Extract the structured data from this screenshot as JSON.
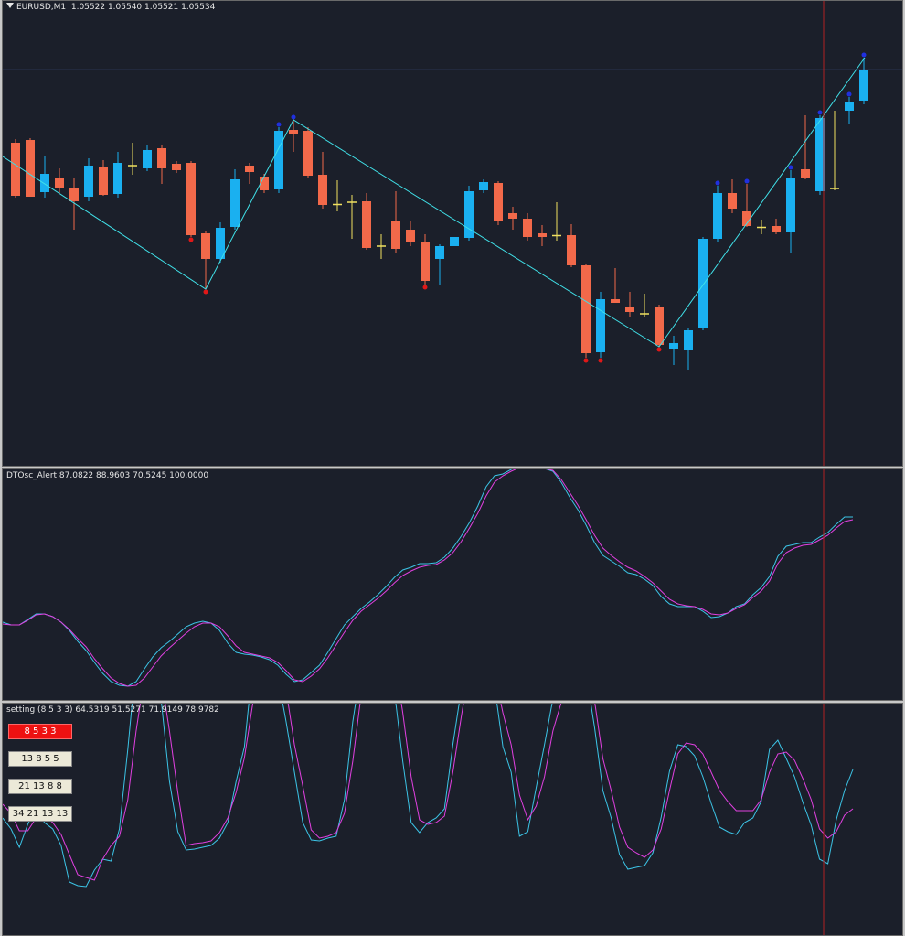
{
  "main": {
    "symbol": "EURUSD,M1",
    "ohlc": "1.05522 1.05540 1.05521 1.05534"
  },
  "osc1": {
    "title": "DTOsc_Alert 87.0822 88.9603 70.5245 100.0000"
  },
  "osc2": {
    "title": "setting (8 5 3 3) 64.5319 51.5271 71.9149 78.9782",
    "buttons": [
      "8  5  3  3",
      "13  8  5  5",
      "21 13 8 8",
      "34 21 13 13"
    ],
    "active_button": 0
  },
  "colors": {
    "background": "#1b1f2a",
    "bull": "#1ab0f0",
    "bear": "#f2694a",
    "doji": "#f0e060",
    "zigzag": "#40e0e8",
    "fast_line": "#3cc4e6",
    "slow_line": "#e040e0",
    "cursor": "#b22222",
    "fractal_low": "#e01818",
    "fractal_high": "#2030e0"
  },
  "chart_data": [
    {
      "type": "candlestick",
      "name": "EURUSD,M1",
      "candles": [
        [
          155,
          151,
          215,
          213
        ],
        [
          152,
          150,
          214,
          214
        ],
        [
          209,
          170,
          215,
          189
        ],
        [
          193,
          183,
          210,
          205
        ],
        [
          204,
          194,
          250,
          219
        ],
        [
          214,
          172,
          219,
          180
        ],
        [
          182,
          174,
          213,
          212
        ],
        [
          211,
          165,
          215,
          177
        ],
        [
          180,
          155,
          190,
          180
        ],
        [
          183,
          157,
          186,
          163
        ],
        [
          161,
          158,
          200,
          183
        ],
        [
          178,
          175,
          188,
          185
        ],
        [
          177,
          175,
          258,
          256
        ],
        [
          254,
          252,
          315,
          282
        ],
        [
          282,
          242,
          286,
          248
        ],
        [
          247,
          184,
          250,
          195
        ],
        [
          180,
          177,
          200,
          187
        ],
        [
          192,
          189,
          210,
          207
        ],
        [
          206,
          138,
          210,
          142
        ],
        [
          141,
          130,
          165,
          145
        ],
        [
          142,
          138,
          193,
          191
        ],
        [
          190,
          165,
          227,
          223
        ],
        [
          221,
          196,
          230,
          224
        ],
        [
          219,
          212,
          260,
          221
        ],
        [
          219,
          210,
          272,
          270
        ],
        [
          268,
          255,
          282,
          268
        ],
        [
          240,
          208,
          275,
          271
        ],
        [
          250,
          240,
          268,
          264
        ],
        [
          264,
          255,
          310,
          306
        ],
        [
          282,
          266,
          311,
          268
        ],
        [
          268,
          258,
          265,
          258
        ],
        [
          259,
          202,
          262,
          208
        ],
        [
          207,
          195,
          210,
          198
        ],
        [
          199,
          197,
          245,
          241
        ],
        [
          232,
          225,
          250,
          238
        ],
        [
          238,
          232,
          262,
          258
        ],
        [
          254,
          245,
          268,
          258
        ],
        [
          255,
          220,
          262,
          258
        ],
        [
          256,
          244,
          291,
          289
        ],
        [
          289,
          287,
          390,
          385
        ],
        [
          384,
          318,
          390,
          326
        ],
        [
          326,
          292,
          330,
          330
        ],
        [
          335,
          318,
          345,
          340
        ],
        [
          341,
          320,
          345,
          343
        ],
        [
          335,
          332,
          378,
          376
        ],
        [
          380,
          366,
          398,
          374
        ],
        [
          382,
          357,
          403,
          360
        ],
        [
          357,
          258,
          360,
          260
        ],
        [
          260,
          202,
          263,
          210
        ],
        [
          210,
          195,
          232,
          227
        ],
        [
          230,
          200,
          247,
          246
        ],
        [
          246,
          239,
          255,
          249
        ],
        [
          246,
          238,
          255,
          253
        ],
        [
          253,
          185,
          276,
          193
        ],
        [
          184,
          125,
          195,
          194
        ],
        [
          208,
          125,
          212,
          128
        ],
        [
          205,
          120,
          207,
          205
        ],
        [
          120,
          105,
          135,
          111
        ],
        [
          109,
          62,
          113,
          76
        ]
      ]
    },
    {
      "type": "line",
      "name": "DTOsc_Alert",
      "series": [
        {
          "values": [
            87,
            84,
            84,
            90,
            96,
            96,
            93,
            87,
            78,
            66,
            56,
            43,
            31,
            22,
            18,
            17,
            22,
            36,
            49,
            59,
            66,
            74,
            82,
            86,
            88,
            86,
            78,
            64,
            54,
            52,
            51,
            49,
            46,
            40,
            30,
            22,
            24,
            32,
            40,
            54,
            69,
            84,
            93,
            102,
            109,
            117,
            126,
            136,
            144,
            147,
            151,
            151,
            152,
            158,
            168,
            181,
            196,
            214,
            235,
            247,
            249,
            254,
            259,
            256,
            257,
            255,
            252,
            240,
            224,
            210,
            193,
            174,
            160,
            154,
            148,
            141,
            139,
            134,
            127,
            115,
            107,
            104,
            104,
            104,
            99,
            92,
            93,
            97,
            104,
            107,
            117,
            125,
            137,
            159,
            170,
            172,
            174,
            174,
            180,
            185,
            194,
            202,
            202
          ]
        },
        {
          "values": [
            85,
            84,
            84,
            89,
            95,
            96,
            93,
            87,
            79,
            69,
            60,
            47,
            36,
            26,
            20,
            17,
            18,
            26,
            38,
            50,
            59,
            67,
            75,
            82,
            86,
            86,
            82,
            72,
            61,
            54,
            52,
            50,
            48,
            43,
            34,
            24,
            22,
            28,
            36,
            48,
            62,
            76,
            89,
            99,
            106,
            113,
            121,
            130,
            138,
            143,
            147,
            149,
            150,
            155,
            163,
            175,
            190,
            206,
            225,
            240,
            247,
            252,
            256,
            256,
            256,
            255,
            253,
            243,
            229,
            215,
            199,
            182,
            168,
            160,
            153,
            147,
            143,
            137,
            130,
            121,
            112,
            107,
            105,
            104,
            101,
            96,
            95,
            97,
            102,
            106,
            114,
            121,
            132,
            151,
            163,
            168,
            171,
            172,
            177,
            182,
            190,
            197,
            199
          ]
        }
      ]
    },
    {
      "type": "line",
      "name": "setting (8 5 3 3)",
      "series": [
        {
          "values": [
            130,
            118,
            98,
            123,
            142,
            125,
            118,
            100,
            60,
            56,
            55,
            73,
            85,
            83,
            118,
            205,
            302,
            325,
            318,
            260,
            170,
            115,
            95,
            96,
            98,
            100,
            108,
            125,
            170,
            208,
            298,
            318,
            318,
            285,
            235,
            180,
            125,
            106,
            105,
            108,
            110,
            150,
            235,
            296,
            325,
            326,
            300,
            268,
            192,
            125,
            114,
            125,
            130,
            140,
            210,
            270,
            320,
            322,
            295,
            275,
            208,
            180,
            110,
            115,
            163,
            210,
            260,
            272,
            315,
            322,
            288,
            229,
            160,
            130,
            90,
            74,
            76,
            78,
            92,
            131,
            181,
            210,
            208,
            198,
            175,
            146,
            120,
            115,
            112,
            125,
            130,
            148,
            205,
            215,
            195,
            175,
            147,
            122,
            85,
            80,
            128,
            160,
            183
          ]
        },
        {
          "values": [
            145,
            135,
            116,
            116,
            130,
            132,
            125,
            112,
            90,
            68,
            65,
            62,
            85,
            100,
            110,
            150,
            225,
            285,
            300,
            285,
            225,
            158,
            100,
            102,
            103,
            105,
            114,
            130,
            158,
            196,
            255,
            305,
            320,
            310,
            270,
            210,
            165,
            117,
            108,
            110,
            114,
            135,
            192,
            265,
            315,
            330,
            326,
            305,
            245,
            175,
            128,
            123,
            125,
            132,
            180,
            240,
            295,
            318,
            312,
            290,
            245,
            210,
            155,
            128,
            143,
            175,
            225,
            256,
            285,
            305,
            300,
            258,
            195,
            160,
            120,
            98,
            92,
            87,
            95,
            118,
            160,
            200,
            212,
            210,
            200,
            180,
            160,
            148,
            138,
            138,
            138,
            150,
            180,
            200,
            202,
            193,
            173,
            150,
            118,
            108,
            115,
            133,
            140
          ]
        }
      ]
    }
  ]
}
